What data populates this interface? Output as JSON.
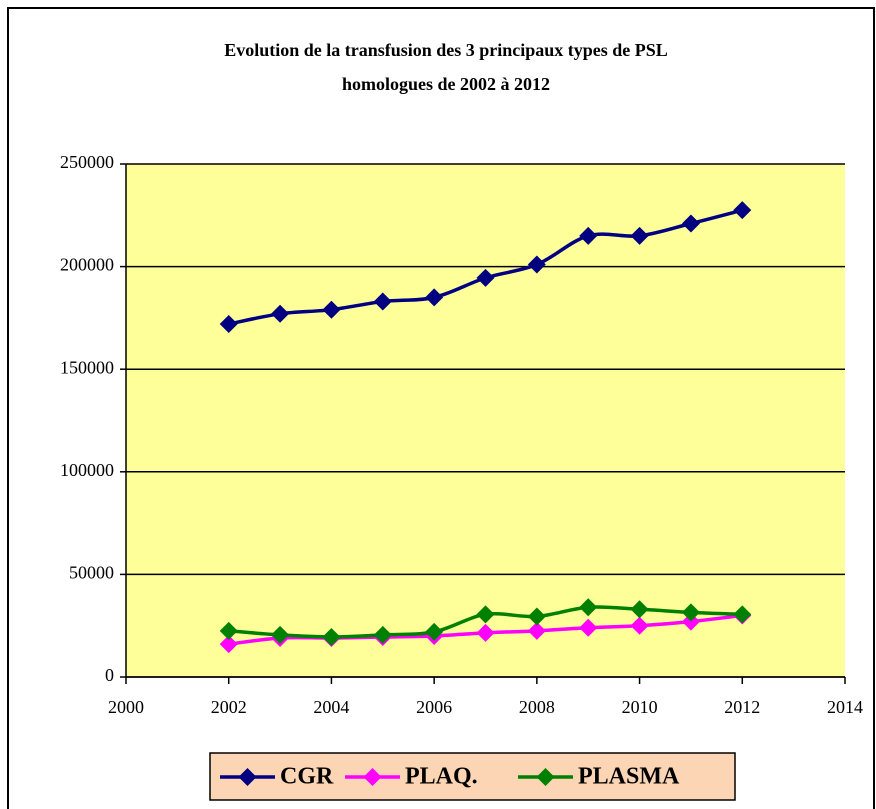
{
  "chart_data": {
    "type": "line",
    "title": [
      "Evolution de la transfusion des 3 principaux types de PSL",
      "homologues de 2002 à 2012"
    ],
    "x": [
      2002,
      2003,
      2004,
      2005,
      2006,
      2007,
      2008,
      2009,
      2010,
      2011,
      2012
    ],
    "series": [
      {
        "name": "CGR",
        "color": "#000080",
        "values": [
          172000,
          177000,
          179000,
          183000,
          185000,
          194500,
          201000,
          215000,
          215000,
          221000,
          227500
        ]
      },
      {
        "name": "PLAQ.",
        "color": "#ff00ff",
        "values": [
          16000,
          19000,
          19000,
          19500,
          20000,
          21500,
          22500,
          24000,
          25000,
          27000,
          30000
        ]
      },
      {
        "name": "PLASMA",
        "color": "#008000",
        "values": [
          22500,
          20500,
          19500,
          20500,
          22000,
          30500,
          29500,
          34000,
          33000,
          31500,
          30500
        ]
      }
    ],
    "xlim": [
      2000,
      2014
    ],
    "xticks": [
      2000,
      2002,
      2004,
      2006,
      2008,
      2010,
      2012,
      2014
    ],
    "ylim": [
      0,
      250000
    ],
    "yticks": [
      0,
      50000,
      100000,
      150000,
      200000,
      250000
    ],
    "grid": true,
    "smooth": true,
    "legend": "bottom"
  }
}
